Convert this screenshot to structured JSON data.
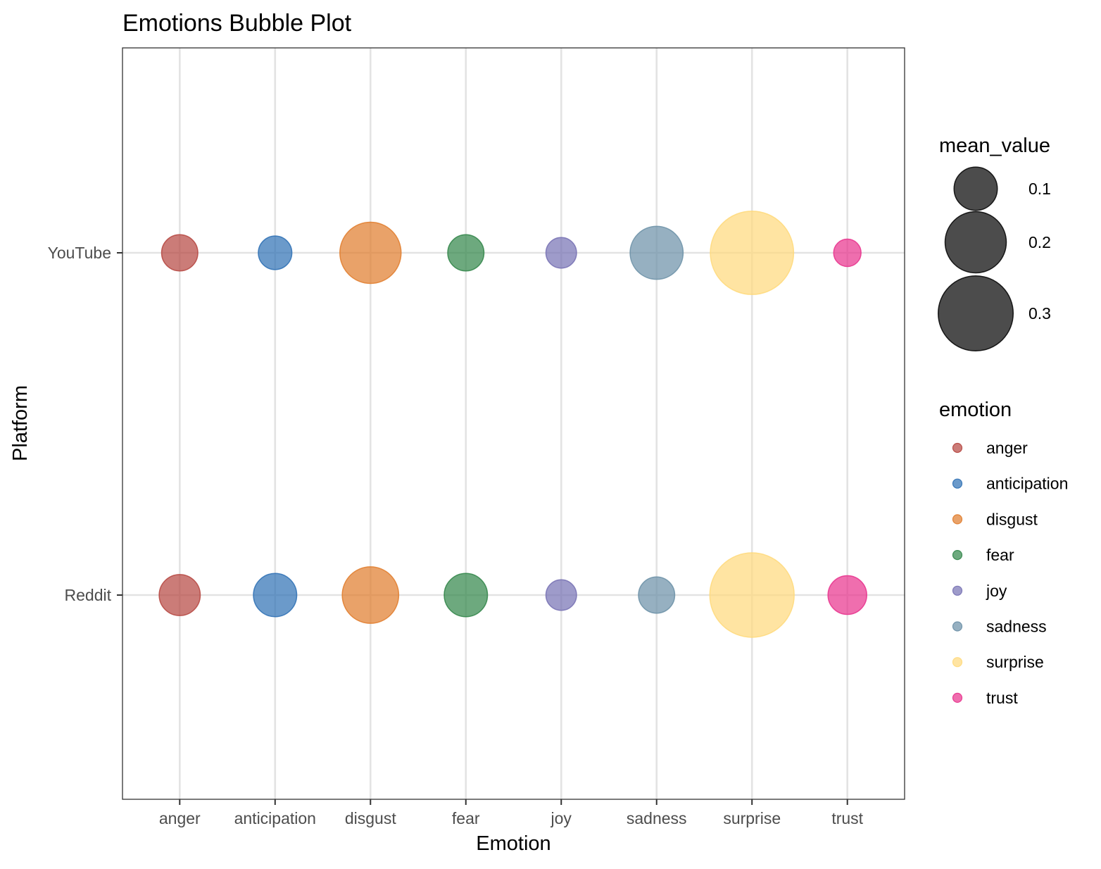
{
  "chart_data": {
    "type": "scatter",
    "subtype": "bubble",
    "title": "Emotions Bubble Plot",
    "xlabel": "Emotion",
    "ylabel": "Platform",
    "x_categories": [
      "anger",
      "anticipation",
      "disgust",
      "fear",
      "joy",
      "sadness",
      "surprise",
      "trust"
    ],
    "y_categories": [
      "Reddit",
      "YouTube"
    ],
    "grid": true,
    "theme": "bw",
    "point_alpha": 0.7,
    "points": [
      {
        "platform": "YouTube",
        "emotion": "anger",
        "mean_value": 0.07
      },
      {
        "platform": "YouTube",
        "emotion": "anticipation",
        "mean_value": 0.06
      },
      {
        "platform": "YouTube",
        "emotion": "disgust",
        "mean_value": 0.2
      },
      {
        "platform": "YouTube",
        "emotion": "fear",
        "mean_value": 0.07
      },
      {
        "platform": "YouTube",
        "emotion": "joy",
        "mean_value": 0.05
      },
      {
        "platform": "YouTube",
        "emotion": "sadness",
        "mean_value": 0.15
      },
      {
        "platform": "YouTube",
        "emotion": "surprise",
        "mean_value": 0.37
      },
      {
        "platform": "YouTube",
        "emotion": "trust",
        "mean_value": 0.04
      },
      {
        "platform": "Reddit",
        "emotion": "anger",
        "mean_value": 0.09
      },
      {
        "platform": "Reddit",
        "emotion": "anticipation",
        "mean_value": 0.1
      },
      {
        "platform": "Reddit",
        "emotion": "disgust",
        "mean_value": 0.17
      },
      {
        "platform": "Reddit",
        "emotion": "fear",
        "mean_value": 0.1
      },
      {
        "platform": "Reddit",
        "emotion": "joy",
        "mean_value": 0.05
      },
      {
        "platform": "Reddit",
        "emotion": "sadness",
        "mean_value": 0.07
      },
      {
        "platform": "Reddit",
        "emotion": "surprise",
        "mean_value": 0.38
      },
      {
        "platform": "Reddit",
        "emotion": "trust",
        "mean_value": 0.08
      }
    ],
    "colors": {
      "anger": "#b5443e",
      "anticipation": "#2c6fb4",
      "disgust": "#e07b2a",
      "fear": "#2f8447",
      "joy": "#7570b3",
      "sadness": "#6a8fa6",
      "surprise": "#ffd97a",
      "trust": "#e8308c"
    },
    "legend": {
      "position": "right",
      "size_title": "mean_value",
      "size_breaks": [
        0.1,
        0.2,
        0.3
      ],
      "size_labels": [
        "0.1",
        "0.2",
        "0.3"
      ],
      "color_title": "emotion",
      "color_entries": [
        "anger",
        "anticipation",
        "disgust",
        "fear",
        "joy",
        "sadness",
        "surprise",
        "trust"
      ]
    }
  }
}
